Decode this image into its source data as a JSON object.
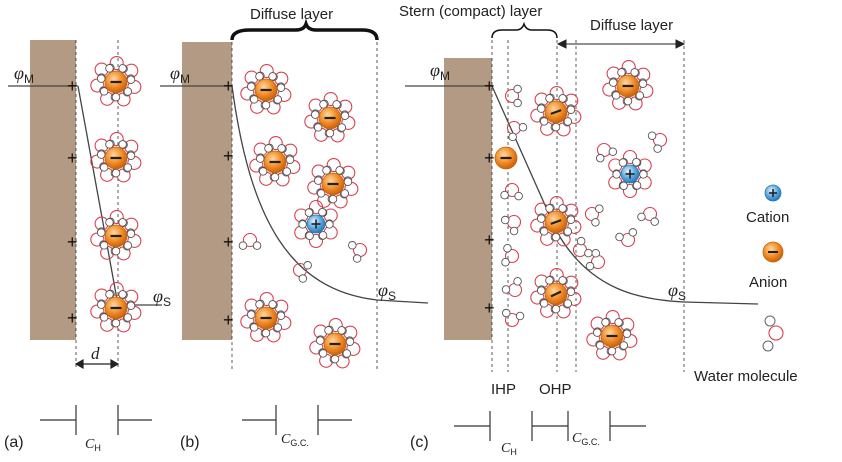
{
  "labels": {
    "phi": "φ",
    "sub_m": "M",
    "sub_s": "S",
    "plus": "+",
    "minus": "−",
    "d": "d",
    "diffuse_b": "Diffuse layer",
    "stern": "Stern (compact) layer",
    "diffuse_c": "Diffuse layer",
    "ihp": "IHP",
    "ohp": "OHP",
    "cation": "Cation",
    "anion": "Anion",
    "water": "Water molecule",
    "panel_a": "(a)",
    "panel_b": "(b)",
    "panel_c": "(c)",
    "c_letter": "C",
    "sub_h": "H",
    "sub_gc": "G.C."
  },
  "colors": {
    "electrode": "#b39a84",
    "anion": "#f08a24",
    "cation": "#5aa6db",
    "water_o": "#d84050",
    "water_h": "#555555"
  }
}
